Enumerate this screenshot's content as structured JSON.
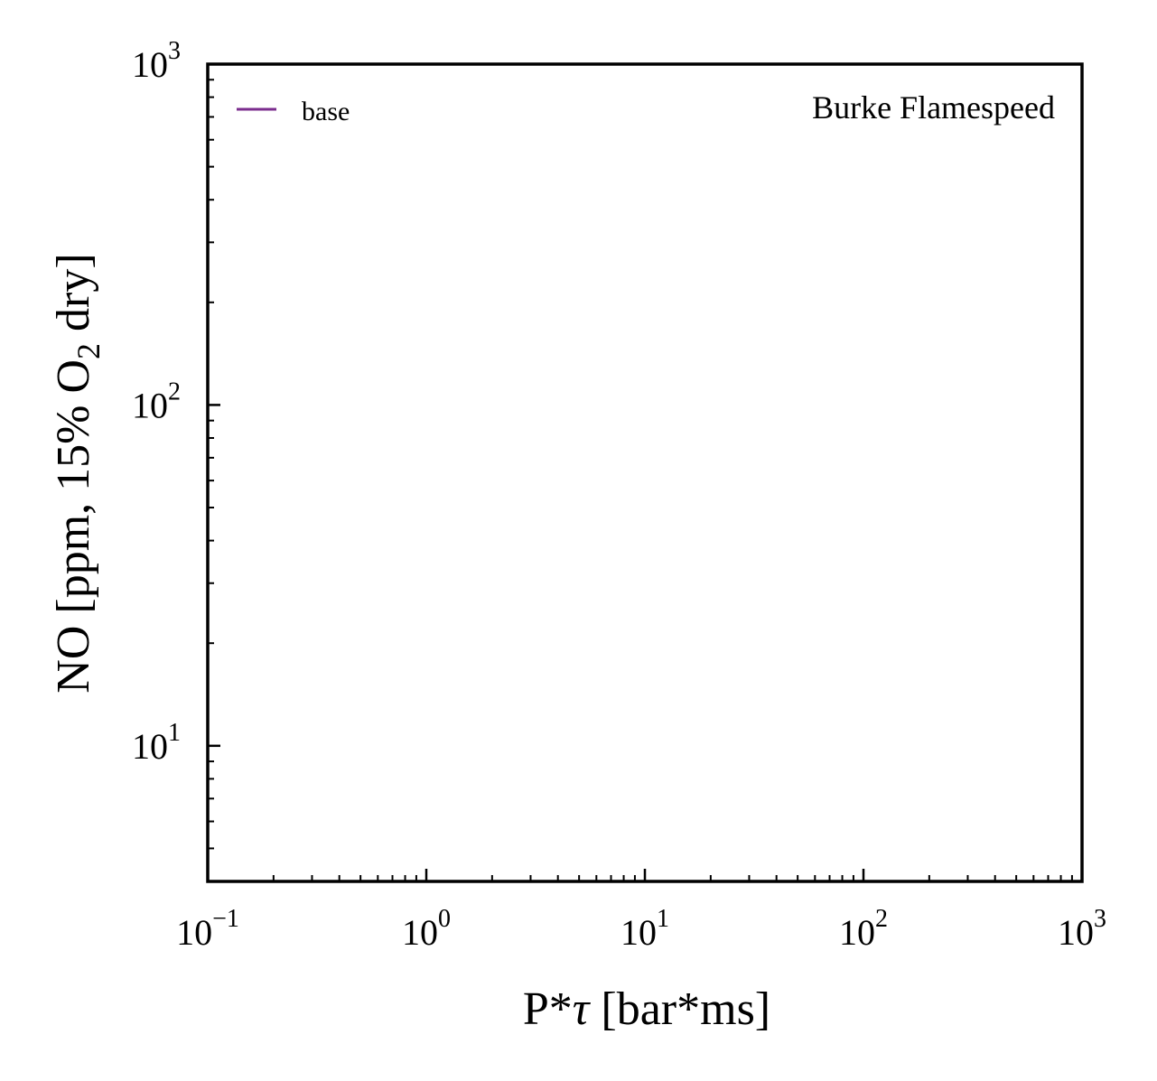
{
  "chart_data": {
    "type": "line",
    "xscale": "log",
    "yscale": "log",
    "xlim": [
      0.1,
      1000
    ],
    "ylim": [
      4,
      1000
    ],
    "xlabel": {
      "main": "P*",
      "symbol": "τ",
      "unit": " [bar*ms]"
    },
    "ylabel": {
      "before_sub": "NO [ppm, 15% O",
      "sub": "2",
      "after_sub": " dry]"
    },
    "x_ticks": [
      {
        "base": "10",
        "exp": "−1",
        "value": 0.1
      },
      {
        "base": "10",
        "exp": "0",
        "value": 1
      },
      {
        "base": "10",
        "exp": "1",
        "value": 10
      },
      {
        "base": "10",
        "exp": "2",
        "value": 100
      },
      {
        "base": "10",
        "exp": "3",
        "value": 1000
      }
    ],
    "y_ticks": [
      {
        "base": "10",
        "exp": "1",
        "value": 10
      },
      {
        "base": "10",
        "exp": "2",
        "value": 100
      },
      {
        "base": "10",
        "exp": "3",
        "value": 1000
      }
    ],
    "annotation": "Burke Flamespeed",
    "legend_position": "top-left",
    "grid": false,
    "series": [
      {
        "name": "base",
        "color": "#7b2d8e",
        "x": [],
        "y": []
      }
    ]
  }
}
